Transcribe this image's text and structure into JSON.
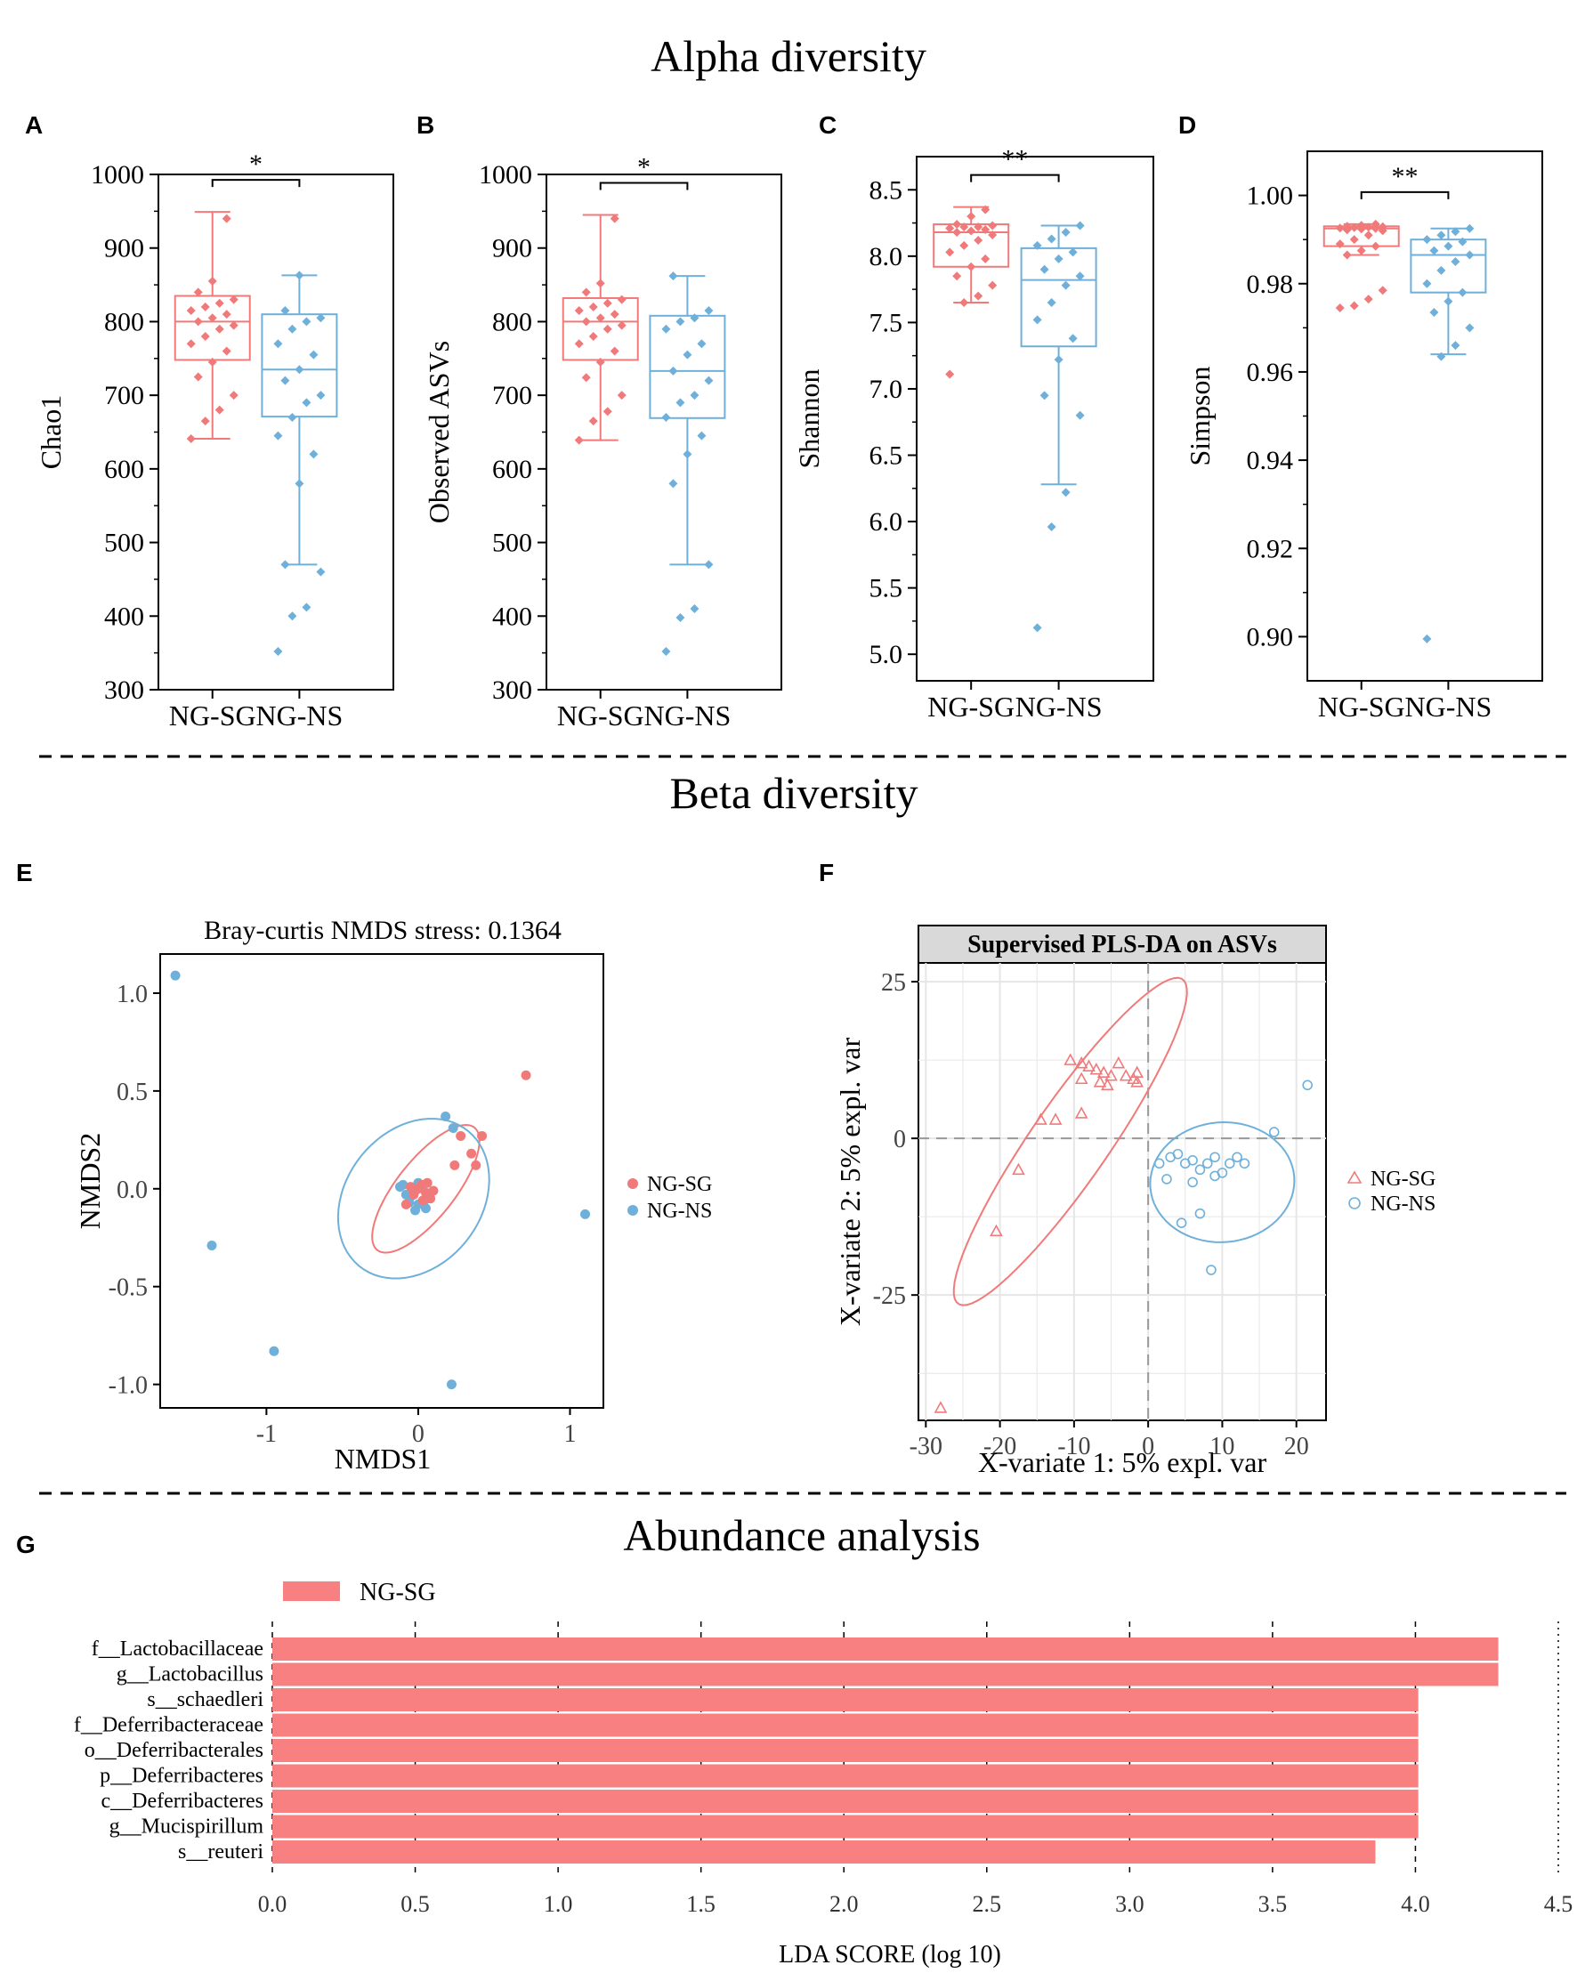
{
  "sections": {
    "alpha_title": "Alpha diversity",
    "beta_title": "Beta diversity",
    "abundance_title": "Abundance analysis"
  },
  "colors": {
    "sg": "#f07a7a",
    "ns": "#6fb0da",
    "lda_bar": "#f88080",
    "facet_bg": "#d9d9d9",
    "grid": "#e6e6e6"
  },
  "chart_data": [
    {
      "id": "A",
      "panel_label": "A",
      "type": "box",
      "ylabel": "Chao1",
      "categories": [
        "NG-SG",
        "NG-NS"
      ],
      "ylim": [
        300,
        1000
      ],
      "yticks": [
        300,
        400,
        500,
        600,
        700,
        800,
        900,
        1000
      ],
      "ytick_labels": [
        "300",
        "400",
        "500",
        "600",
        "700",
        "800",
        "900",
        "1000"
      ],
      "significance": "*",
      "boxes": [
        {
          "group": "NG-SG",
          "whisker_low": 641,
          "q1": 748,
          "median": 800,
          "q3": 835,
          "whisker_high": 949,
          "points": [
            641,
            665,
            680,
            700,
            725,
            745,
            760,
            770,
            780,
            790,
            795,
            800,
            805,
            810,
            815,
            820,
            825,
            830,
            840,
            855,
            940
          ]
        },
        {
          "group": "NG-NS",
          "whisker_low": 470,
          "q1": 671,
          "median": 735,
          "q3": 810,
          "whisker_high": 863,
          "points": [
            352,
            400,
            412,
            460,
            470,
            580,
            620,
            645,
            670,
            690,
            700,
            720,
            735,
            755,
            770,
            790,
            800,
            805,
            815,
            863
          ]
        }
      ]
    },
    {
      "id": "B",
      "panel_label": "B",
      "type": "box",
      "ylabel": "Observed ASVs",
      "categories": [
        "NG-SG",
        "NG-NS"
      ],
      "ylim": [
        300,
        1000
      ],
      "yticks": [
        300,
        400,
        500,
        600,
        700,
        800,
        900,
        1000
      ],
      "ytick_labels": [
        "300",
        "400",
        "500",
        "600",
        "700",
        "800",
        "900",
        "1000"
      ],
      "significance": "*",
      "boxes": [
        {
          "group": "NG-SG",
          "whisker_low": 639,
          "q1": 748,
          "median": 800,
          "q3": 832,
          "whisker_high": 945,
          "points": [
            639,
            665,
            678,
            700,
            724,
            745,
            760,
            770,
            780,
            790,
            795,
            800,
            805,
            810,
            815,
            820,
            825,
            830,
            840,
            852,
            940
          ]
        },
        {
          "group": "NG-NS",
          "whisker_low": 470,
          "q1": 669,
          "median": 733,
          "q3": 808,
          "whisker_high": 862,
          "points": [
            352,
            398,
            410,
            470,
            580,
            620,
            645,
            670,
            690,
            700,
            720,
            733,
            755,
            770,
            790,
            800,
            805,
            815,
            862
          ]
        }
      ]
    },
    {
      "id": "C",
      "panel_label": "C",
      "type": "box",
      "ylabel": "Shannon",
      "categories": [
        "NG-SG",
        "NG-NS"
      ],
      "ylim": [
        4.8,
        8.75
      ],
      "yticks": [
        5.0,
        5.5,
        6.0,
        6.5,
        7.0,
        7.5,
        8.0,
        8.5
      ],
      "ytick_labels": [
        "5.0",
        "5.5",
        "6.0",
        "6.5",
        "7.0",
        "7.5",
        "8.0",
        "8.5"
      ],
      "significance": "**",
      "boxes": [
        {
          "group": "NG-SG",
          "whisker_low": 7.65,
          "q1": 7.92,
          "median": 8.18,
          "q3": 8.24,
          "whisker_high": 8.37,
          "points": [
            7.11,
            7.65,
            7.7,
            7.78,
            7.85,
            7.92,
            7.98,
            8.03,
            8.08,
            8.12,
            8.16,
            8.18,
            8.19,
            8.2,
            8.21,
            8.22,
            8.22,
            8.23,
            8.24,
            8.3,
            8.35
          ]
        },
        {
          "group": "NG-NS",
          "whisker_low": 6.28,
          "q1": 7.32,
          "median": 7.82,
          "q3": 8.06,
          "whisker_high": 8.23,
          "points": [
            5.2,
            5.96,
            6.22,
            6.8,
            6.95,
            7.22,
            7.38,
            7.52,
            7.65,
            7.78,
            7.85,
            7.9,
            7.98,
            8.03,
            8.08,
            8.13,
            8.18,
            8.23
          ]
        }
      ]
    },
    {
      "id": "D",
      "panel_label": "D",
      "type": "box",
      "ylabel": "Simpson",
      "categories": [
        "NG-SG",
        "NG-NS"
      ],
      "ylim": [
        0.89,
        1.01
      ],
      "yticks": [
        0.9,
        0.92,
        0.94,
        0.96,
        0.98,
        1.0
      ],
      "ytick_labels": [
        "0.90",
        "0.92",
        "0.94",
        "0.96",
        "0.98",
        "1.00"
      ],
      "significance": "**",
      "boxes": [
        {
          "group": "NG-SG",
          "whisker_low": 0.9865,
          "q1": 0.9885,
          "median": 0.9925,
          "q3": 0.993,
          "whisker_high": 0.9935,
          "points": [
            0.9745,
            0.975,
            0.9765,
            0.9785,
            0.9865,
            0.9875,
            0.9885,
            0.989,
            0.99,
            0.991,
            0.992,
            0.9922,
            0.9924,
            0.9925,
            0.9926,
            0.9927,
            0.9928,
            0.9929,
            0.993,
            0.9932,
            0.9935
          ]
        },
        {
          "group": "NG-NS",
          "whisker_low": 0.964,
          "q1": 0.978,
          "median": 0.9865,
          "q3": 0.99,
          "whisker_high": 0.9925,
          "points": [
            0.8995,
            0.9635,
            0.966,
            0.97,
            0.9735,
            0.976,
            0.978,
            0.98,
            0.983,
            0.985,
            0.9865,
            0.9875,
            0.9885,
            0.9895,
            0.99,
            0.991,
            0.9918,
            0.9925
          ]
        }
      ]
    },
    {
      "id": "E",
      "panel_label": "E",
      "type": "scatter",
      "title": "Bray-curtis NMDS stress: 0.1364",
      "xlabel": "NMDS1",
      "ylabel": "NMDS2",
      "xlim": [
        -1.7,
        1.22
      ],
      "ylim": [
        -1.12,
        1.2
      ],
      "xticks": [
        -1,
        0,
        1
      ],
      "xtick_labels": [
        "-1",
        "0",
        "1"
      ],
      "yticks": [
        -1.0,
        -0.5,
        0.0,
        0.5,
        1.0
      ],
      "ytick_labels": [
        "-1.0",
        "-0.5",
        "0.0",
        "0.5",
        "1.0"
      ],
      "legend": [
        "NG-SG",
        "NG-NS"
      ],
      "legend_position": "right",
      "series": [
        {
          "name": "NG-SG",
          "ellipse": {
            "cx": 0.05,
            "cy": 0.0,
            "rx": 0.45,
            "ry": 0.17,
            "angle_deg": 42
          },
          "points": [
            [
              0.71,
              0.58
            ],
            [
              0.28,
              0.27
            ],
            [
              0.42,
              0.27
            ],
            [
              0.38,
              0.12
            ],
            [
              0.24,
              0.12
            ],
            [
              0.35,
              0.18
            ],
            [
              -0.08,
              -0.08
            ],
            [
              0.05,
              -0.02
            ],
            [
              0.0,
              0.0
            ],
            [
              0.02,
              0.02
            ],
            [
              -0.03,
              -0.03
            ],
            [
              0.08,
              -0.05
            ],
            [
              -0.05,
              0.01
            ],
            [
              0.06,
              0.03
            ],
            [
              0.03,
              -0.06
            ],
            [
              -0.02,
              -0.01
            ],
            [
              0.1,
              -0.01
            ]
          ]
        },
        {
          "name": "NG-NS",
          "ellipse": {
            "cx": -0.03,
            "cy": -0.05,
            "rx": 0.52,
            "ry": 0.38,
            "angle_deg": 25
          },
          "points": [
            [
              -1.6,
              1.09
            ],
            [
              -1.36,
              -0.29
            ],
            [
              -0.95,
              -0.83
            ],
            [
              1.1,
              -0.13
            ],
            [
              0.22,
              -1.0
            ],
            [
              0.18,
              0.37
            ],
            [
              0.23,
              0.31
            ],
            [
              -0.1,
              0.02
            ],
            [
              -0.05,
              -0.04
            ],
            [
              0.0,
              -0.08
            ],
            [
              -0.08,
              -0.03
            ],
            [
              0.05,
              -0.1
            ],
            [
              -0.12,
              0.01
            ],
            [
              0.03,
              0.02
            ],
            [
              -0.06,
              -0.07
            ],
            [
              0.0,
              0.03
            ],
            [
              -0.02,
              -0.11
            ],
            [
              0.04,
              -0.06
            ]
          ]
        }
      ]
    },
    {
      "id": "F",
      "panel_label": "F",
      "type": "scatter",
      "title": "Supervised PLS-DA on ASVs",
      "xlabel": "X-variate 1: 5% expl. var",
      "ylabel": "X-variate 2: 5% expl. var",
      "xlim": [
        -31,
        24
      ],
      "ylim": [
        -45,
        28
      ],
      "xticks": [
        -30,
        -20,
        -10,
        0,
        10,
        20
      ],
      "xtick_labels": [
        "-30",
        "-20",
        "-10",
        "0",
        "10",
        "20"
      ],
      "yticks": [
        -25,
        0,
        25
      ],
      "ytick_labels": [
        "-25",
        "0",
        "25"
      ],
      "legend": [
        "NG-SG",
        "NG-NS"
      ],
      "legend_position": "right",
      "series": [
        {
          "name": "NG-SG",
          "marker": "triangle",
          "ellipse": {
            "cx": -10.5,
            "cy": -0.5,
            "rx": 30,
            "ry": 5.5,
            "angle_deg": 60
          },
          "points": [
            [
              -28,
              -43
            ],
            [
              -20.5,
              -14.8
            ],
            [
              -17.5,
              -5
            ],
            [
              -14.5,
              3
            ],
            [
              -12.5,
              3
            ],
            [
              -9,
              4
            ],
            [
              -10.5,
              12.5
            ],
            [
              -9,
              12
            ],
            [
              -8,
              11.5
            ],
            [
              -7,
              11
            ],
            [
              -6,
              10.5
            ],
            [
              -5,
              10
            ],
            [
              -4,
              12
            ],
            [
              -3,
              10
            ],
            [
              -2,
              9.5
            ],
            [
              -1.5,
              10.5
            ],
            [
              -6.5,
              9
            ],
            [
              -9,
              9.5
            ],
            [
              -5.5,
              8.5
            ],
            [
              -1.5,
              9
            ]
          ]
        },
        {
          "name": "NG-NS",
          "marker": "circle",
          "ellipse": {
            "cx": 10,
            "cy": -7,
            "rx": 9.8,
            "ry": 9.5,
            "angle_deg": 30
          },
          "points": [
            [
              21.5,
              8.5
            ],
            [
              17,
              1
            ],
            [
              1.5,
              -4
            ],
            [
              3,
              -3
            ],
            [
              4,
              -2.5
            ],
            [
              5,
              -4
            ],
            [
              6,
              -3.5
            ],
            [
              7,
              -5
            ],
            [
              8,
              -4
            ],
            [
              9,
              -3
            ],
            [
              10,
              -5.5
            ],
            [
              11,
              -4
            ],
            [
              12,
              -3
            ],
            [
              13,
              -4
            ],
            [
              2.5,
              -6.5
            ],
            [
              4.5,
              -13.5
            ],
            [
              7,
              -12
            ],
            [
              8.5,
              -21
            ],
            [
              6,
              -7
            ],
            [
              9,
              -6
            ]
          ]
        }
      ]
    },
    {
      "id": "G",
      "panel_label": "G",
      "type": "bar",
      "orientation": "horizontal",
      "xlabel": "LDA SCORE (log 10)",
      "xlim": [
        0,
        4.5
      ],
      "xticks": [
        0.0,
        0.5,
        1.0,
        1.5,
        2.0,
        2.5,
        3.0,
        3.5,
        4.0,
        4.5
      ],
      "xtick_labels": [
        "0.0",
        "0.5",
        "1.0",
        "1.5",
        "2.0",
        "2.5",
        "3.0",
        "3.5",
        "4.0",
        "4.5"
      ],
      "legend": "NG-SG",
      "legend_position": "top-left",
      "categories": [
        "f__Lactobacillaceae",
        "g__Lactobacillus",
        "s__schaedleri",
        "f__Deferribacteraceae",
        "o__Deferribacterales",
        "p__Deferribacteres",
        "c__Deferribacteres",
        "g__Mucispirillum",
        "s__reuteri"
      ],
      "values": [
        4.29,
        4.29,
        4.01,
        4.01,
        4.01,
        4.01,
        4.01,
        4.01,
        3.86
      ]
    }
  ]
}
